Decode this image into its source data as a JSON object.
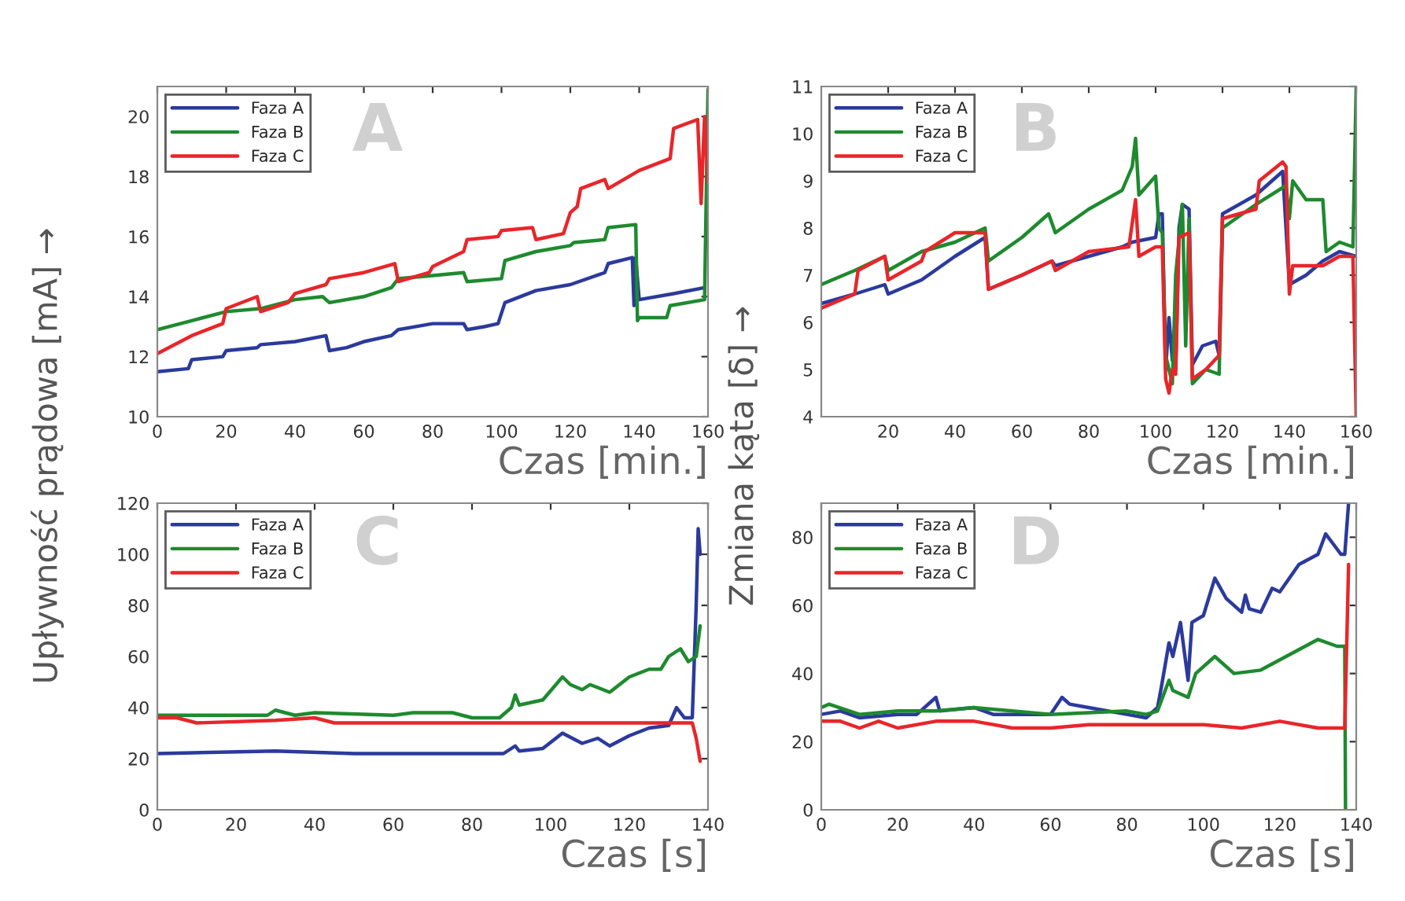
{
  "chart_data": [
    {
      "type": "line",
      "annotations": [
        "A"
      ],
      "xlabel": "Czas [min.]",
      "ylabel": "Upływność prądowa [mA] →",
      "xlim": [
        0,
        160
      ],
      "ylim": [
        10,
        21
      ],
      "xticks": [
        0,
        20,
        40,
        60,
        80,
        100,
        120,
        140,
        160
      ],
      "yticks": [
        10,
        12,
        14,
        16,
        18,
        20
      ],
      "legend": "top left",
      "grid": false,
      "series": [
        {
          "name": "Faza A",
          "color": "#2b3a9c",
          "x": [
            0,
            9,
            10,
            19,
            20,
            29,
            30,
            40,
            49,
            50,
            55,
            60,
            68,
            70,
            80,
            89,
            90,
            95,
            99,
            101,
            110,
            120,
            130,
            131,
            138,
            138.5,
            139,
            140,
            150,
            159
          ],
          "values": [
            11.5,
            11.6,
            11.9,
            12.0,
            12.2,
            12.3,
            12.4,
            12.5,
            12.7,
            12.2,
            12.3,
            12.5,
            12.7,
            12.9,
            13.1,
            13.1,
            12.9,
            13.0,
            13.1,
            13.8,
            14.2,
            14.4,
            14.8,
            15.1,
            15.3,
            13.7,
            15.3,
            13.9,
            14.1,
            14.3
          ]
        },
        {
          "name": "Faza B",
          "color": "#1e8a2e",
          "x": [
            0,
            10,
            20,
            30,
            40,
            48,
            50,
            60,
            68,
            70,
            80,
            89,
            90,
            100,
            101,
            110,
            120,
            121,
            130,
            131,
            139,
            139.5,
            140,
            148,
            149,
            159,
            160
          ],
          "values": [
            12.9,
            13.2,
            13.5,
            13.6,
            13.9,
            14.0,
            13.8,
            14.0,
            14.3,
            14.6,
            14.7,
            14.8,
            14.5,
            14.6,
            15.2,
            15.5,
            15.7,
            15.8,
            15.9,
            16.3,
            16.4,
            13.2,
            13.3,
            13.3,
            13.7,
            13.9,
            20.9
          ]
        },
        {
          "name": "Faza C",
          "color": "#e8262a",
          "x": [
            0,
            10,
            19,
            20,
            29,
            30,
            38,
            40,
            49,
            50,
            60,
            69,
            70,
            79,
            80,
            89,
            90,
            99,
            100,
            109,
            110,
            118,
            120,
            122,
            123,
            130,
            131,
            140,
            149,
            150,
            157,
            158,
            159,
            160
          ],
          "values": [
            12.1,
            12.7,
            13.1,
            13.6,
            14.0,
            13.5,
            13.8,
            14.1,
            14.4,
            14.6,
            14.8,
            15.1,
            14.5,
            14.8,
            15.0,
            15.5,
            15.9,
            16.0,
            16.2,
            16.3,
            15.9,
            16.1,
            16.8,
            17.0,
            17.6,
            17.9,
            17.6,
            18.2,
            18.6,
            19.6,
            19.9,
            17.1,
            20.0,
            17.8
          ]
        }
      ]
    },
    {
      "type": "line",
      "annotations": [
        "B"
      ],
      "xlabel": "Czas [min.]",
      "ylabel": "Zmiana kąta [δ] →",
      "xlim": [
        0,
        160
      ],
      "ylim": [
        4,
        11
      ],
      "xticks": [
        20,
        40,
        60,
        80,
        100,
        120,
        140,
        160
      ],
      "yticks": [
        4,
        5,
        6,
        7,
        8,
        9,
        10,
        11
      ],
      "legend": "top left",
      "grid": false,
      "series": [
        {
          "name": "Faza A",
          "color": "#2b3a9c",
          "x": [
            0,
            10,
            19,
            20,
            30,
            40,
            49,
            50,
            60,
            69,
            70,
            80,
            90,
            93,
            100,
            101,
            102,
            103,
            104,
            105,
            106,
            107,
            108,
            110,
            111,
            114,
            118,
            119,
            120,
            130,
            138,
            139,
            140,
            145,
            150,
            155,
            160
          ],
          "values": [
            6.4,
            6.6,
            6.8,
            6.6,
            6.9,
            7.4,
            7.8,
            6.7,
            7.0,
            7.3,
            7.2,
            7.4,
            7.6,
            7.7,
            7.8,
            8.3,
            8.3,
            5.0,
            6.1,
            5.2,
            5.0,
            8.0,
            8.5,
            8.4,
            5.1,
            5.5,
            5.6,
            5.3,
            8.3,
            8.7,
            9.2,
            8.0,
            6.8,
            7.0,
            7.3,
            7.5,
            7.4
          ]
        },
        {
          "name": "Faza B",
          "color": "#1e8a2e",
          "x": [
            0,
            10,
            19,
            20,
            30,
            40,
            49,
            50,
            60,
            68,
            70,
            80,
            90,
            93,
            94,
            95,
            100,
            101,
            102,
            103,
            105,
            106,
            108,
            109,
            110,
            111,
            115,
            119,
            120,
            130,
            139,
            140,
            141,
            145,
            150,
            151,
            155,
            159,
            160
          ],
          "values": [
            6.8,
            7.1,
            7.4,
            7.1,
            7.5,
            7.7,
            8.0,
            7.3,
            7.8,
            8.3,
            7.9,
            8.4,
            8.8,
            9.3,
            9.9,
            8.7,
            9.1,
            8.0,
            7.9,
            5.3,
            4.7,
            7.0,
            8.5,
            5.5,
            8.2,
            4.7,
            5.0,
            4.9,
            8.0,
            8.5,
            8.9,
            8.2,
            9.0,
            8.6,
            8.6,
            7.5,
            7.7,
            7.6,
            11.0
          ]
        },
        {
          "name": "Faza C",
          "color": "#e8262a",
          "x": [
            0,
            10,
            11,
            19,
            20,
            30,
            31,
            40,
            49,
            50,
            60,
            69,
            70,
            80,
            92,
            94,
            95,
            100,
            102,
            103,
            104,
            105,
            106,
            107,
            110,
            111,
            115,
            119,
            120,
            130,
            131,
            138,
            139,
            140,
            141,
            150,
            155,
            159,
            160
          ],
          "values": [
            6.3,
            6.6,
            7.1,
            7.4,
            6.9,
            7.3,
            7.5,
            7.9,
            7.9,
            6.7,
            7.0,
            7.3,
            7.1,
            7.5,
            7.6,
            8.6,
            7.4,
            7.6,
            7.6,
            4.8,
            4.5,
            5.0,
            4.9,
            7.8,
            7.9,
            4.8,
            5.0,
            5.3,
            8.2,
            8.4,
            9.0,
            9.4,
            9.3,
            6.6,
            7.2,
            7.2,
            7.4,
            7.4,
            4.0
          ]
        }
      ]
    },
    {
      "type": "line",
      "annotations": [
        "C"
      ],
      "xlabel": "Czas [s]",
      "xlim": [
        0,
        140
      ],
      "ylim": [
        0,
        120
      ],
      "xticks": [
        0,
        20,
        40,
        60,
        80,
        100,
        120,
        140
      ],
      "yticks": [
        0,
        20,
        40,
        60,
        80,
        100,
        120
      ],
      "legend": "top left",
      "grid": false,
      "series": [
        {
          "name": "Faza A",
          "color": "#2b3a9c",
          "x": [
            0,
            30,
            50,
            80,
            88,
            91,
            92,
            98,
            103,
            108,
            112,
            115,
            120,
            125,
            130,
            132,
            134,
            136,
            137,
            137.5,
            138
          ],
          "values": [
            22,
            23,
            22,
            22,
            22,
            25,
            23,
            24,
            30,
            26,
            28,
            25,
            29,
            32,
            33,
            40,
            36,
            36,
            80,
            110,
            100
          ]
        },
        {
          "name": "Faza B",
          "color": "#1e8a2e",
          "x": [
            0,
            28,
            30,
            35,
            40,
            60,
            65,
            75,
            80,
            87,
            90,
            91,
            92,
            98,
            103,
            105,
            108,
            110,
            115,
            120,
            125,
            128,
            130,
            133,
            135,
            137,
            138
          ],
          "values": [
            37,
            37,
            39,
            37,
            38,
            37,
            38,
            38,
            36,
            36,
            40,
            45,
            41,
            43,
            52,
            49,
            47,
            49,
            46,
            52,
            55,
            55,
            60,
            63,
            58,
            60,
            72
          ]
        },
        {
          "name": "Faza C",
          "color": "#e8262a",
          "x": [
            0,
            5,
            10,
            30,
            40,
            45,
            60,
            90,
            110,
            130,
            136,
            137,
            138
          ],
          "values": [
            36,
            36,
            34,
            35,
            36,
            34,
            34,
            34,
            34,
            34,
            34,
            28,
            19
          ]
        }
      ]
    },
    {
      "type": "line",
      "annotations": [
        "D"
      ],
      "xlabel": "Czas [s]",
      "xlim": [
        0,
        140
      ],
      "ylim": [
        0,
        90
      ],
      "xticks": [
        0,
        20,
        40,
        60,
        80,
        100,
        120,
        140
      ],
      "yticks": [
        0,
        20,
        40,
        60,
        80
      ],
      "legend": "top left",
      "grid": false,
      "series": [
        {
          "name": "Faza A",
          "color": "#2b3a9c",
          "x": [
            0,
            5,
            10,
            20,
            25,
            30,
            31,
            40,
            45,
            60,
            63,
            65,
            70,
            80,
            85,
            88,
            89,
            91,
            92,
            94,
            96,
            97,
            100,
            103,
            106,
            110,
            111,
            112,
            115,
            118,
            120,
            125,
            130,
            132,
            134,
            136,
            137,
            138
          ],
          "values": [
            28,
            29,
            27,
            28,
            28,
            33,
            29,
            30,
            28,
            28,
            33,
            31,
            30,
            28,
            27,
            30,
            36,
            49,
            45,
            55,
            38,
            55,
            57,
            68,
            62,
            58,
            63,
            59,
            58,
            65,
            64,
            72,
            75,
            81,
            78,
            75,
            75,
            90
          ]
        },
        {
          "name": "Faza B",
          "color": "#1e8a2e",
          "x": [
            0,
            2,
            10,
            20,
            30,
            40,
            60,
            80,
            85,
            88,
            91,
            92,
            96,
            98,
            103,
            108,
            115,
            120,
            130,
            135,
            137,
            137.2
          ],
          "values": [
            30,
            31,
            28,
            29,
            29,
            30,
            28,
            29,
            28,
            29,
            38,
            35,
            33,
            40,
            45,
            40,
            41,
            44,
            50,
            48,
            48,
            0
          ]
        },
        {
          "name": "Faza C",
          "color": "#e8262a",
          "x": [
            0,
            5,
            10,
            15,
            20,
            30,
            40,
            50,
            60,
            70,
            80,
            90,
            100,
            110,
            120,
            130,
            137,
            138
          ],
          "values": [
            26,
            26,
            24,
            26,
            24,
            26,
            26,
            24,
            24,
            25,
            25,
            25,
            25,
            24,
            26,
            24,
            24,
            72
          ]
        }
      ]
    }
  ]
}
